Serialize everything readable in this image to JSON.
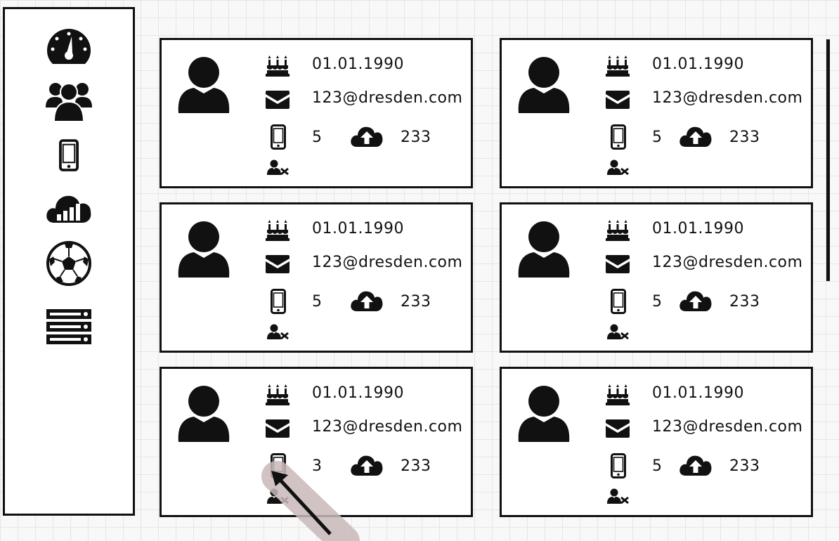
{
  "sidebar": {
    "items": [
      {
        "name": "dashboard",
        "icon": "speedometer-icon"
      },
      {
        "name": "users",
        "icon": "users-group-icon"
      },
      {
        "name": "devices",
        "icon": "mobile-phone-icon"
      },
      {
        "name": "cloud-stats",
        "icon": "cloud-chart-icon"
      },
      {
        "name": "sport",
        "icon": "soccer-ball-icon"
      },
      {
        "name": "servers",
        "icon": "server-stack-icon"
      }
    ]
  },
  "cards": [
    {
      "birthday": "01.01.1990",
      "email": "123@dresden.com",
      "devices": "5",
      "uploads": "233"
    },
    {
      "birthday": "01.01.1990",
      "email": "123@dresden.com",
      "devices": "5",
      "uploads": "233"
    },
    {
      "birthday": "01.01.1990",
      "email": "123@dresden.com",
      "devices": "5",
      "uploads": "233"
    },
    {
      "birthday": "01.01.1990",
      "email": "123@dresden.com",
      "devices": "5",
      "uploads": "233"
    },
    {
      "birthday": "01.01.1990",
      "email": "123@dresden.com",
      "devices": "3",
      "uploads": "233"
    },
    {
      "birthday": "01.01.1990",
      "email": "123@dresden.com",
      "devices": "5",
      "uploads": "233"
    }
  ],
  "colors": {
    "ink": "#111111",
    "background": "#f8f8f8",
    "grid": "#e6e6e6",
    "highlight": "#c9b9b9"
  }
}
